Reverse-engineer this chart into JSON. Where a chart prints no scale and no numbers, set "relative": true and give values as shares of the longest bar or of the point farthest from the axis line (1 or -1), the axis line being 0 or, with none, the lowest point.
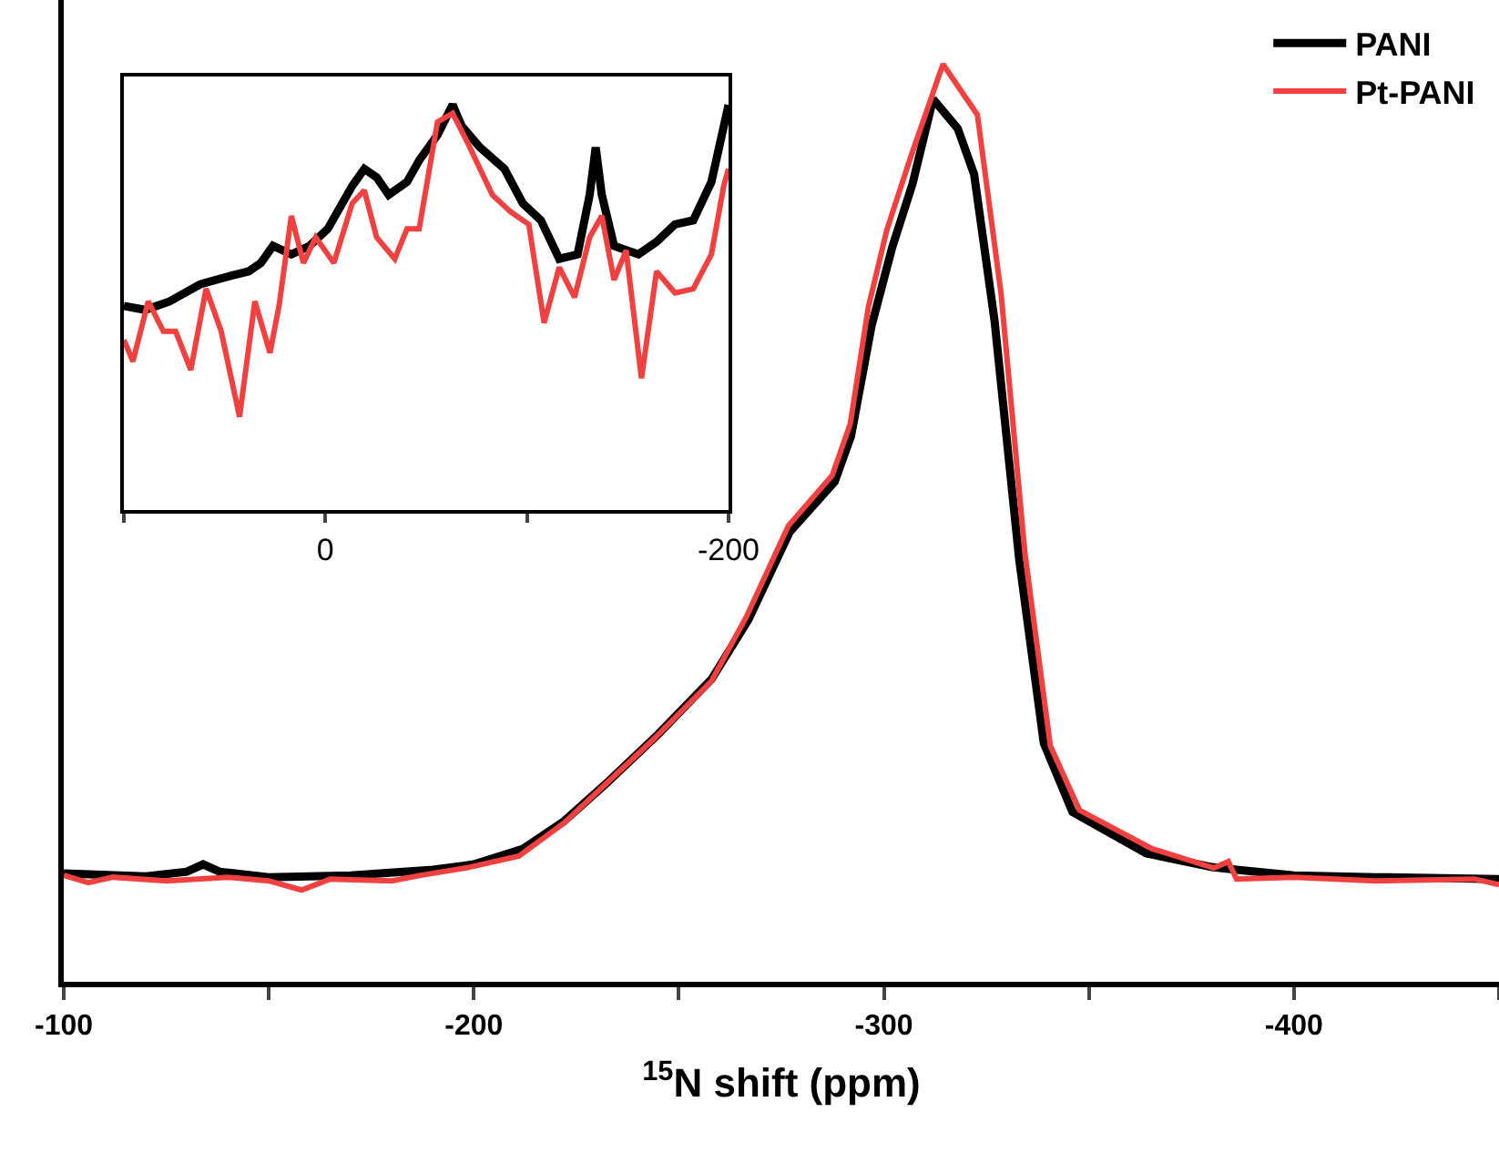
{
  "chart_data": [
    {
      "type": "line",
      "xlabel": "$^{15}$N shift (ppm)",
      "relative": true,
      "legend": "top right",
      "grid": false,
      "marker": "none",
      "line_style": "solid",
      "xlim": [
        -100,
        -450
      ],
      "xticks": [
        -100,
        {
          "value": -150,
          "label": null
        },
        -200,
        {
          "value": -250,
          "label": null
        },
        -300,
        {
          "value": -350,
          "label": null
        },
        -400,
        {
          "value": -450,
          "label": null
        }
      ],
      "series": [
        {
          "name": "PANI",
          "color": "#000000",
          "x": [
            -100,
            -120,
            -130,
            -134,
            -138,
            -150,
            -170,
            -190,
            -200,
            -212,
            -222,
            -232,
            -245,
            -258,
            -267,
            -277,
            -288,
            -292,
            -297,
            -302,
            -307,
            -312,
            -318,
            -322,
            -327,
            -333,
            -339,
            -346,
            -364,
            -380,
            -386,
            -400,
            -420,
            -450
          ],
          "values": [
            0.118,
            0.115,
            0.12,
            0.128,
            0.12,
            0.114,
            0.116,
            0.122,
            0.128,
            0.145,
            0.175,
            0.215,
            0.27,
            0.33,
            0.395,
            0.49,
            0.545,
            0.595,
            0.715,
            0.8,
            0.87,
            0.962,
            0.93,
            0.88,
            0.72,
            0.46,
            0.26,
            0.185,
            0.14,
            0.125,
            0.122,
            0.116,
            0.114,
            0.112
          ]
        },
        {
          "name": "Pt-PANI",
          "color": "#f04040",
          "x": [
            -100,
            -106,
            -112,
            -125,
            -140,
            -150,
            -158,
            -165,
            -180,
            -187,
            -198,
            -211,
            -218,
            -222,
            -244,
            -258,
            -266.5,
            -276.7,
            -287.4,
            -291.8,
            -296.2,
            -300.7,
            -306.4,
            -314.4,
            -322.8,
            -328.6,
            -334.4,
            -340.6,
            -347.7,
            -365.4,
            -380.5,
            -384,
            -386,
            -400,
            -420,
            -444,
            -450
          ],
          "values": [
            0.116,
            0.108,
            0.114,
            0.11,
            0.114,
            0.11,
            0.1,
            0.112,
            0.11,
            0.116,
            0.124,
            0.137,
            0.16,
            0.173,
            0.265,
            0.328,
            0.398,
            0.497,
            0.552,
            0.608,
            0.735,
            0.819,
            0.897,
            1.0,
            0.945,
            0.749,
            0.467,
            0.257,
            0.187,
            0.145,
            0.124,
            0.131,
            0.112,
            0.114,
            0.11,
            0.112,
            0.106
          ]
        }
      ]
    },
    {
      "type": "line",
      "relative": true,
      "legend": false,
      "grid": false,
      "marker": "none",
      "line_style": "solid",
      "xlim": [
        100,
        -200
      ],
      "xticks": [
        {
          "value": 100,
          "label": null
        },
        0,
        {
          "value": -100,
          "label": null
        },
        -200
      ],
      "series": [
        {
          "color": "#000000",
          "x": [
            100,
            89.4,
            77.3,
            62.2,
            47.1,
            38.1,
            32.0,
            26.0,
            16.9,
            7.9,
            -1.2,
            -13.3,
            -19.3,
            -25.4,
            -31.4,
            -40.5,
            -46.5,
            -55.6,
            -63.1,
            -67.7,
            -76.7,
            -88.8,
            -97.9,
            -106.9,
            -116.0,
            -125.1,
            -131.1,
            -134.1,
            -137.1,
            -143.2,
            -155.3,
            -164.3,
            -173.4,
            -182.5,
            -191.5,
            -200
          ],
          "values": [
            0.504,
            0.494,
            0.515,
            0.557,
            0.578,
            0.589,
            0.61,
            0.652,
            0.631,
            0.652,
            0.694,
            0.8,
            0.842,
            0.821,
            0.778,
            0.81,
            0.863,
            0.926,
            1.0,
            0.947,
            0.895,
            0.842,
            0.757,
            0.715,
            0.62,
            0.631,
            0.778,
            0.895,
            0.778,
            0.652,
            0.631,
            0.662,
            0.705,
            0.715,
            0.81,
            1.0
          ]
        },
        {
          "color": "#f04040",
          "x": [
            100,
            95.5,
            87.9,
            80.4,
            74.3,
            66.8,
            59.2,
            51.7,
            42.6,
            35.0,
            27.5,
            23.0,
            16.9,
            10.9,
            4.8,
            -4.2,
            -13.3,
            -19.3,
            -25.4,
            -34.4,
            -40.5,
            -46.5,
            -55.6,
            -63.1,
            -70.7,
            -76.7,
            -82.8,
            -91.9,
            -100.9,
            -108.5,
            -116.0,
            -123.6,
            -131.1,
            -137.1,
            -143.2,
            -149.2,
            -156.8,
            -164.3,
            -173.4,
            -182.5,
            -191.5,
            -197.6,
            -200
          ],
          "values": [
            0.42,
            0.367,
            0.515,
            0.441,
            0.441,
            0.346,
            0.546,
            0.441,
            0.23,
            0.515,
            0.388,
            0.504,
            0.726,
            0.61,
            0.673,
            0.61,
            0.757,
            0.789,
            0.673,
            0.62,
            0.694,
            0.694,
            0.958,
            0.979,
            0.905,
            0.842,
            0.778,
            0.736,
            0.705,
            0.462,
            0.599,
            0.525,
            0.673,
            0.726,
            0.568,
            0.641,
            0.325,
            0.589,
            0.536,
            0.546,
            0.631,
            0.8,
            0.842
          ]
        }
      ]
    }
  ]
}
